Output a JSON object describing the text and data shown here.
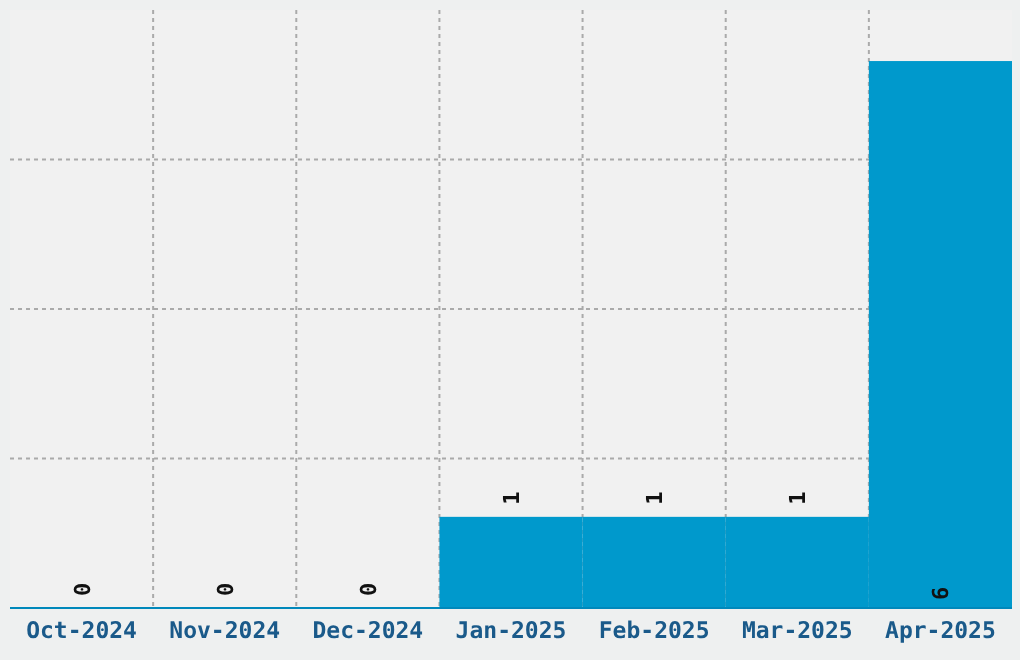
{
  "chart_data": {
    "type": "bar",
    "categories": [
      "Oct-2024",
      "Nov-2024",
      "Dec-2024",
      "Jan-2025",
      "Feb-2025",
      "Mar-2025",
      "Apr-2025"
    ],
    "values": [
      0,
      0,
      0,
      1,
      1,
      1,
      6
    ],
    "color": "#0099cc",
    "data_labels": true,
    "grid": true,
    "tick_labels": "x",
    "ylim": [
      0,
      6.56
    ],
    "yticks": [
      {
        "value": 1.64,
        "label": null
      },
      {
        "value": 3.28,
        "label": null
      },
      {
        "value": 4.92,
        "label": null
      }
    ]
  }
}
